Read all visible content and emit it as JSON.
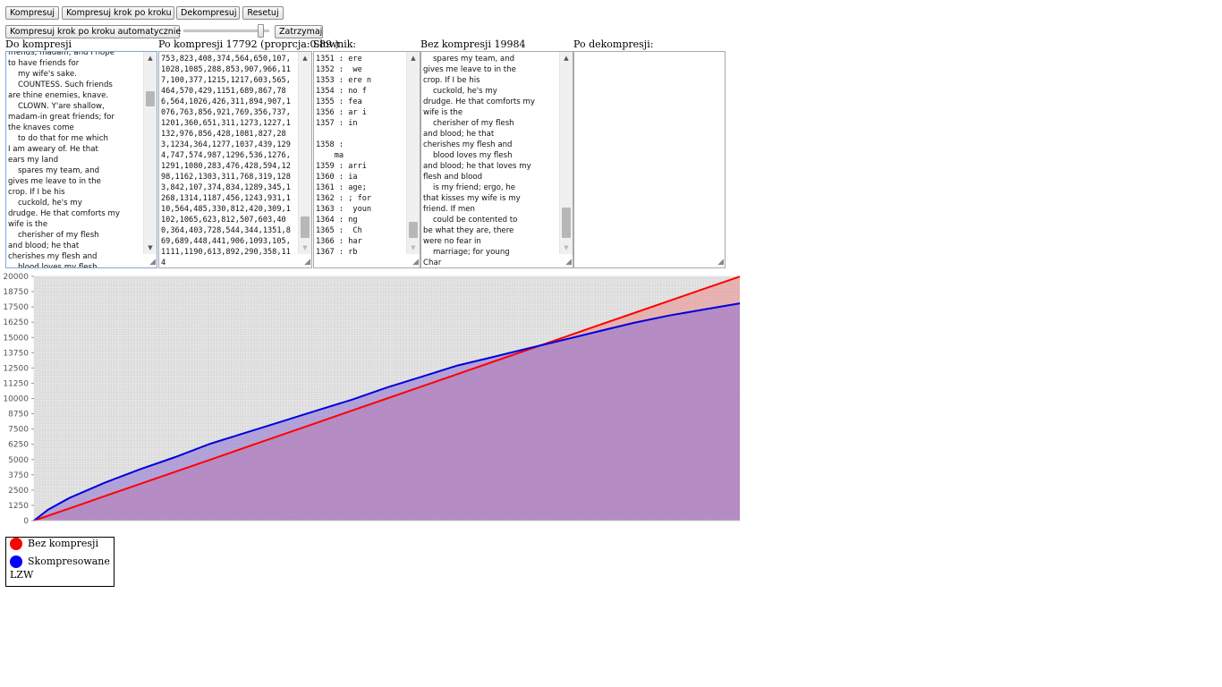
{
  "toolbar": {
    "compress_label": "Kompresuj",
    "step_label": "Kompresuj krok po kroku",
    "decompress_label": "Dekompresuj",
    "reset_label": "Resetuj",
    "auto_step_label": "Kompresuj krok po kroku automatycznie",
    "stop_label": "Zatrzymaj",
    "speed_slider": {
      "value": 0.93
    }
  },
  "columns": {
    "before": {
      "label": "Do kompresji",
      "text": "friends, madam; and I hope\nto have friends for\n    my wife's sake.\n    COUNTESS. Such friends\nare thine enemies, knave.\n    CLOWN. Y'are shallow,\nmadam-in great friends; for\nthe knaves come\n    to do that for me which\nI am aweary of. He that\nears my land\n    spares my team, and\ngives me leave to in the\ncrop. If I be his\n    cuckold, he's my\ndrudge. He that comforts my\nwife is the\n    cherisher of my flesh\nand blood; he that\ncherishes my flesh and\n    blood loves my flesh"
    },
    "after": {
      "label": "Po kompresji 17792 (proprcja:0.89 )",
      "text": "753,823,408,374,564,650,107,1028,1085,288,853,907,966,117,100,377,1215,1217,603,565,464,570,429,1151,689,867,786,564,1026,426,311,894,907,1076,763,856,921,769,356,737,1201,360,651,311,1273,1227,1132,976,856,428,1081,827,283,1234,364,1277,1037,439,1294,747,574,987,1296,536,1276,1291,1080,283,476,428,594,1298,1162,1303,311,768,319,1283,842,107,374,834,1289,345,1268,1314,1187,456,1243,931,110,564,485,330,812,420,309,1102,1065,623,812,507,603,400,364,403,728,544,344,1351,869,689,448,441,906,1093,105,1111,1190,613,892,290,358,114"
    },
    "dictionary": {
      "label": "Słownik:",
      "text": "1351 : ere\n1352 :  we\n1353 : ere n\n1354 : no f\n1355 : fea\n1356 : ar i\n1357 : in\n\n1358 :\n    ma\n1359 : arri\n1360 : ia\n1361 : age;\n1362 : ; for\n1363 :  youn\n1364 : ng\n1365 :  Ch\n1366 : har\n1367 : rb"
    },
    "uncompressed": {
      "label": "Bez kompresji 19984",
      "text": "    spares my team, and\ngives me leave to in the\ncrop. If I be his\n    cuckold, he's my\ndrudge. He that comforts my\nwife is the\n    cherisher of my flesh\nand blood; he that\ncherishes my flesh and\n    blood loves my flesh\nand blood; he that loves my\nflesh and blood\n    is my friend; ergo, he\nthat kisses my wife is my\nfriend. If men\n    could be contented to\nbe what they are, there\nwere no fear in\n    marriage; for young\nChar"
    },
    "decompressed": {
      "label": "Po dekompresji:",
      "text": ""
    }
  },
  "chart_data": {
    "type": "area",
    "ylim": [
      0,
      20000
    ],
    "yticks": [
      0,
      1250,
      2500,
      3750,
      5000,
      6250,
      7500,
      8750,
      10000,
      11250,
      12500,
      13750,
      15000,
      16250,
      17500,
      18750,
      20000
    ],
    "x": [
      0,
      0.02,
      0.05,
      0.1,
      0.15,
      0.2,
      0.25,
      0.3,
      0.35,
      0.4,
      0.45,
      0.5,
      0.55,
      0.6,
      0.65,
      0.7,
      0.75,
      0.8,
      0.85,
      0.9,
      0.95,
      1.0
    ],
    "series": [
      {
        "name": "Bez kompresji",
        "color": "#ff0000",
        "fill": "rgba(235,130,130,0.5)",
        "values": [
          0,
          400,
          1000,
          2000,
          3000,
          4000,
          5000,
          6000,
          7000,
          8000,
          9000,
          10000,
          11000,
          12000,
          13000,
          14000,
          15000,
          16000,
          17000,
          18000,
          19000,
          19984
        ]
      },
      {
        "name": "Skompresowane LZW",
        "color": "#0000dd",
        "fill": "rgba(140,110,210,0.55)",
        "values": [
          0,
          900,
          1850,
          3100,
          4200,
          5200,
          6300,
          7200,
          8100,
          9000,
          9900,
          10900,
          11800,
          12700,
          13400,
          14100,
          14800,
          15500,
          16200,
          16800,
          17300,
          17792
        ]
      }
    ],
    "grid": true,
    "legend": {
      "placement": "below-left",
      "entries": [
        {
          "label": "Bez kompresji",
          "color": "#ff0000"
        },
        {
          "label": "Skompresowane",
          "color": "#0000ff"
        }
      ],
      "title": "LZW"
    }
  }
}
